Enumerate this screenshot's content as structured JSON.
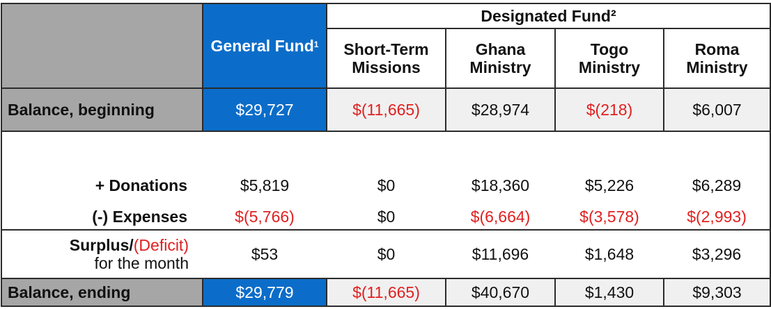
{
  "header": {
    "designated_fund": "Designated Fund²",
    "general_fund": "General Fund",
    "general_fund_sup": "1",
    "columns": [
      {
        "line1": "Short-Term",
        "line2": "Missions"
      },
      {
        "line1": "Ghana",
        "line2": "Ministry"
      },
      {
        "line1": "Togo",
        "line2": "Ministry"
      },
      {
        "line1": "Roma",
        "line2": "Ministry"
      }
    ]
  },
  "rows": {
    "balance_beginning": {
      "label": "Balance, beginning",
      "values": [
        "$29,727",
        "$(11,665)",
        "$28,974",
        "$(218)",
        "$6,007"
      ]
    },
    "donations": {
      "label": "+  Donations",
      "values": [
        "$5,819",
        "$0",
        "$18,360",
        "$5,226",
        "$6,289"
      ]
    },
    "expenses": {
      "label": "(-)  Expenses",
      "values": [
        "$(5,766)",
        "$0",
        "$(6,664)",
        "$(3,578)",
        "$(2,993)"
      ]
    },
    "surplus": {
      "label_part1": "Surplus/",
      "label_part2": "(Deficit)",
      "label_line2": "for the month",
      "values": [
        "$53",
        "$0",
        "$11,696",
        "$1,648",
        "$3,296"
      ]
    },
    "balance_ending": {
      "label": "Balance, ending",
      "values": [
        "$29,779",
        "$(11,665)",
        "$40,670",
        "$1,430",
        "$9,303"
      ]
    }
  },
  "colors": {
    "header_gray": "#a6a6a6",
    "general_blue": "#0b6dc9",
    "negative_red": "#e02020",
    "light_cell": "#f0f0f0"
  }
}
